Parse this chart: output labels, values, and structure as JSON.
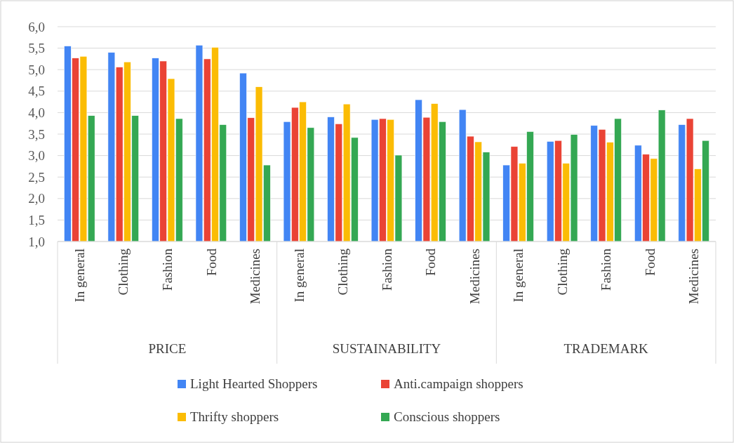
{
  "chart_data": {
    "type": "bar",
    "categories": [
      "In general",
      "Clothing",
      "Fashion",
      "Food",
      "Medicines",
      "In general",
      "Clothing",
      "Fashion",
      "Food",
      "Medicines",
      "In general",
      "Clothing",
      "Fashion",
      "Food",
      "Medicines"
    ],
    "series": [
      {
        "name": "Light Hearted Shoppers",
        "color": "#4285f4",
        "values": [
          5.55,
          5.4,
          5.27,
          5.57,
          4.92,
          3.79,
          3.9,
          3.84,
          4.3,
          4.07,
          2.78,
          3.33,
          3.7,
          3.24,
          3.72
        ]
      },
      {
        "name": "Anti.campaign shoppers",
        "color": "#ea4335",
        "values": [
          5.27,
          5.06,
          5.2,
          5.25,
          3.88,
          4.12,
          3.74,
          3.86,
          3.89,
          3.45,
          3.21,
          3.35,
          3.61,
          3.03,
          3.86
        ]
      },
      {
        "name": "Thrifty shoppers",
        "color": "#fbbc04",
        "values": [
          5.31,
          5.18,
          4.79,
          5.52,
          4.6,
          4.25,
          4.2,
          3.84,
          4.21,
          3.32,
          2.82,
          2.82,
          3.31,
          2.93,
          2.69
        ]
      },
      {
        "name": "Conscious shoppers",
        "color": "#34a853",
        "values": [
          3.93,
          3.93,
          3.86,
          3.72,
          2.78,
          3.65,
          3.42,
          3.01,
          3.79,
          3.08,
          3.56,
          3.49,
          3.86,
          4.06,
          3.35
        ]
      }
    ],
    "annotations": [
      "PRICE",
      "SUSTAINABILITY",
      "TRADEMARK"
    ],
    "ylim": [
      1,
      6
    ],
    "yticks": [
      {
        "value": 1,
        "label": "1,0"
      },
      {
        "value": 1.5,
        "label": "1,5"
      },
      {
        "value": 2,
        "label": "2,0"
      },
      {
        "value": 2.5,
        "label": "2,5"
      },
      {
        "value": 3,
        "label": "3,0"
      },
      {
        "value": 3.5,
        "label": "3,5"
      },
      {
        "value": 4,
        "label": "4,0"
      },
      {
        "value": 4.5,
        "label": "4,5"
      },
      {
        "value": 5,
        "label": "5,0"
      },
      {
        "value": 5.5,
        "label": "5,5"
      },
      {
        "value": 6,
        "label": "6,0"
      }
    ],
    "grid": "y",
    "legend": "bottom"
  }
}
